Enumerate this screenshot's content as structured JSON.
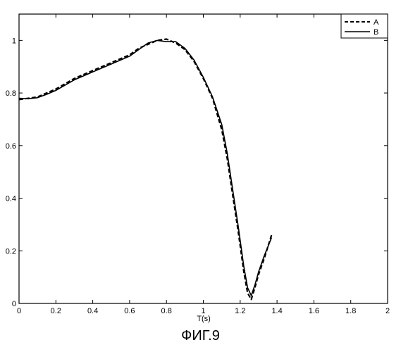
{
  "caption": "ФИГ.9",
  "chart_data": {
    "type": "line",
    "xlabel": "T(s)",
    "ylabel": "",
    "xlim": [
      0,
      2
    ],
    "ylim": [
      0,
      1.1
    ],
    "xticks": [
      0,
      0.2,
      0.4,
      0.6,
      0.8,
      1,
      1.2,
      1.4,
      1.6,
      1.8,
      2
    ],
    "yticks": [
      0,
      0.2,
      0.4,
      0.6,
      0.8,
      1
    ],
    "xtick_labels": [
      "0",
      "0.2",
      "0.4",
      "0.6",
      "0.8",
      "1",
      "1.2",
      "1.4",
      "1.6",
      "1.8",
      "2"
    ],
    "ytick_labels": [
      "0",
      "0.2",
      "0.4",
      "0.6",
      "0.8",
      "1"
    ],
    "legend_position": "top-right",
    "series": [
      {
        "name": "A",
        "style": "dashed",
        "color": "#000000",
        "x": [
          0,
          0.05,
          0.1,
          0.15,
          0.2,
          0.3,
          0.4,
          0.5,
          0.6,
          0.65,
          0.7,
          0.75,
          0.8,
          0.85,
          0.9,
          0.95,
          1.0,
          1.05,
          1.1,
          1.13,
          1.16,
          1.19,
          1.22,
          1.24,
          1.26,
          1.28,
          1.3,
          1.33,
          1.37
        ],
        "y": [
          0.775,
          0.78,
          0.785,
          0.8,
          0.815,
          0.855,
          0.885,
          0.915,
          0.945,
          0.97,
          0.985,
          1.0,
          1.005,
          0.99,
          0.965,
          0.92,
          0.855,
          0.78,
          0.66,
          0.55,
          0.41,
          0.27,
          0.12,
          0.04,
          0.015,
          0.06,
          0.11,
          0.17,
          0.26
        ]
      },
      {
        "name": "B",
        "style": "solid",
        "color": "#000000",
        "x": [
          0,
          0.05,
          0.1,
          0.15,
          0.2,
          0.3,
          0.4,
          0.5,
          0.6,
          0.65,
          0.7,
          0.75,
          0.8,
          0.85,
          0.9,
          0.95,
          1.0,
          1.05,
          1.1,
          1.13,
          1.16,
          1.19,
          1.22,
          1.24,
          1.26,
          1.28,
          1.3,
          1.33,
          1.37
        ],
        "y": [
          0.78,
          0.778,
          0.782,
          0.795,
          0.81,
          0.85,
          0.88,
          0.91,
          0.94,
          0.965,
          0.99,
          1.0,
          0.995,
          0.995,
          0.97,
          0.925,
          0.86,
          0.785,
          0.68,
          0.57,
          0.43,
          0.29,
          0.14,
          0.06,
          0.03,
          0.07,
          0.12,
          0.18,
          0.25
        ]
      }
    ]
  }
}
